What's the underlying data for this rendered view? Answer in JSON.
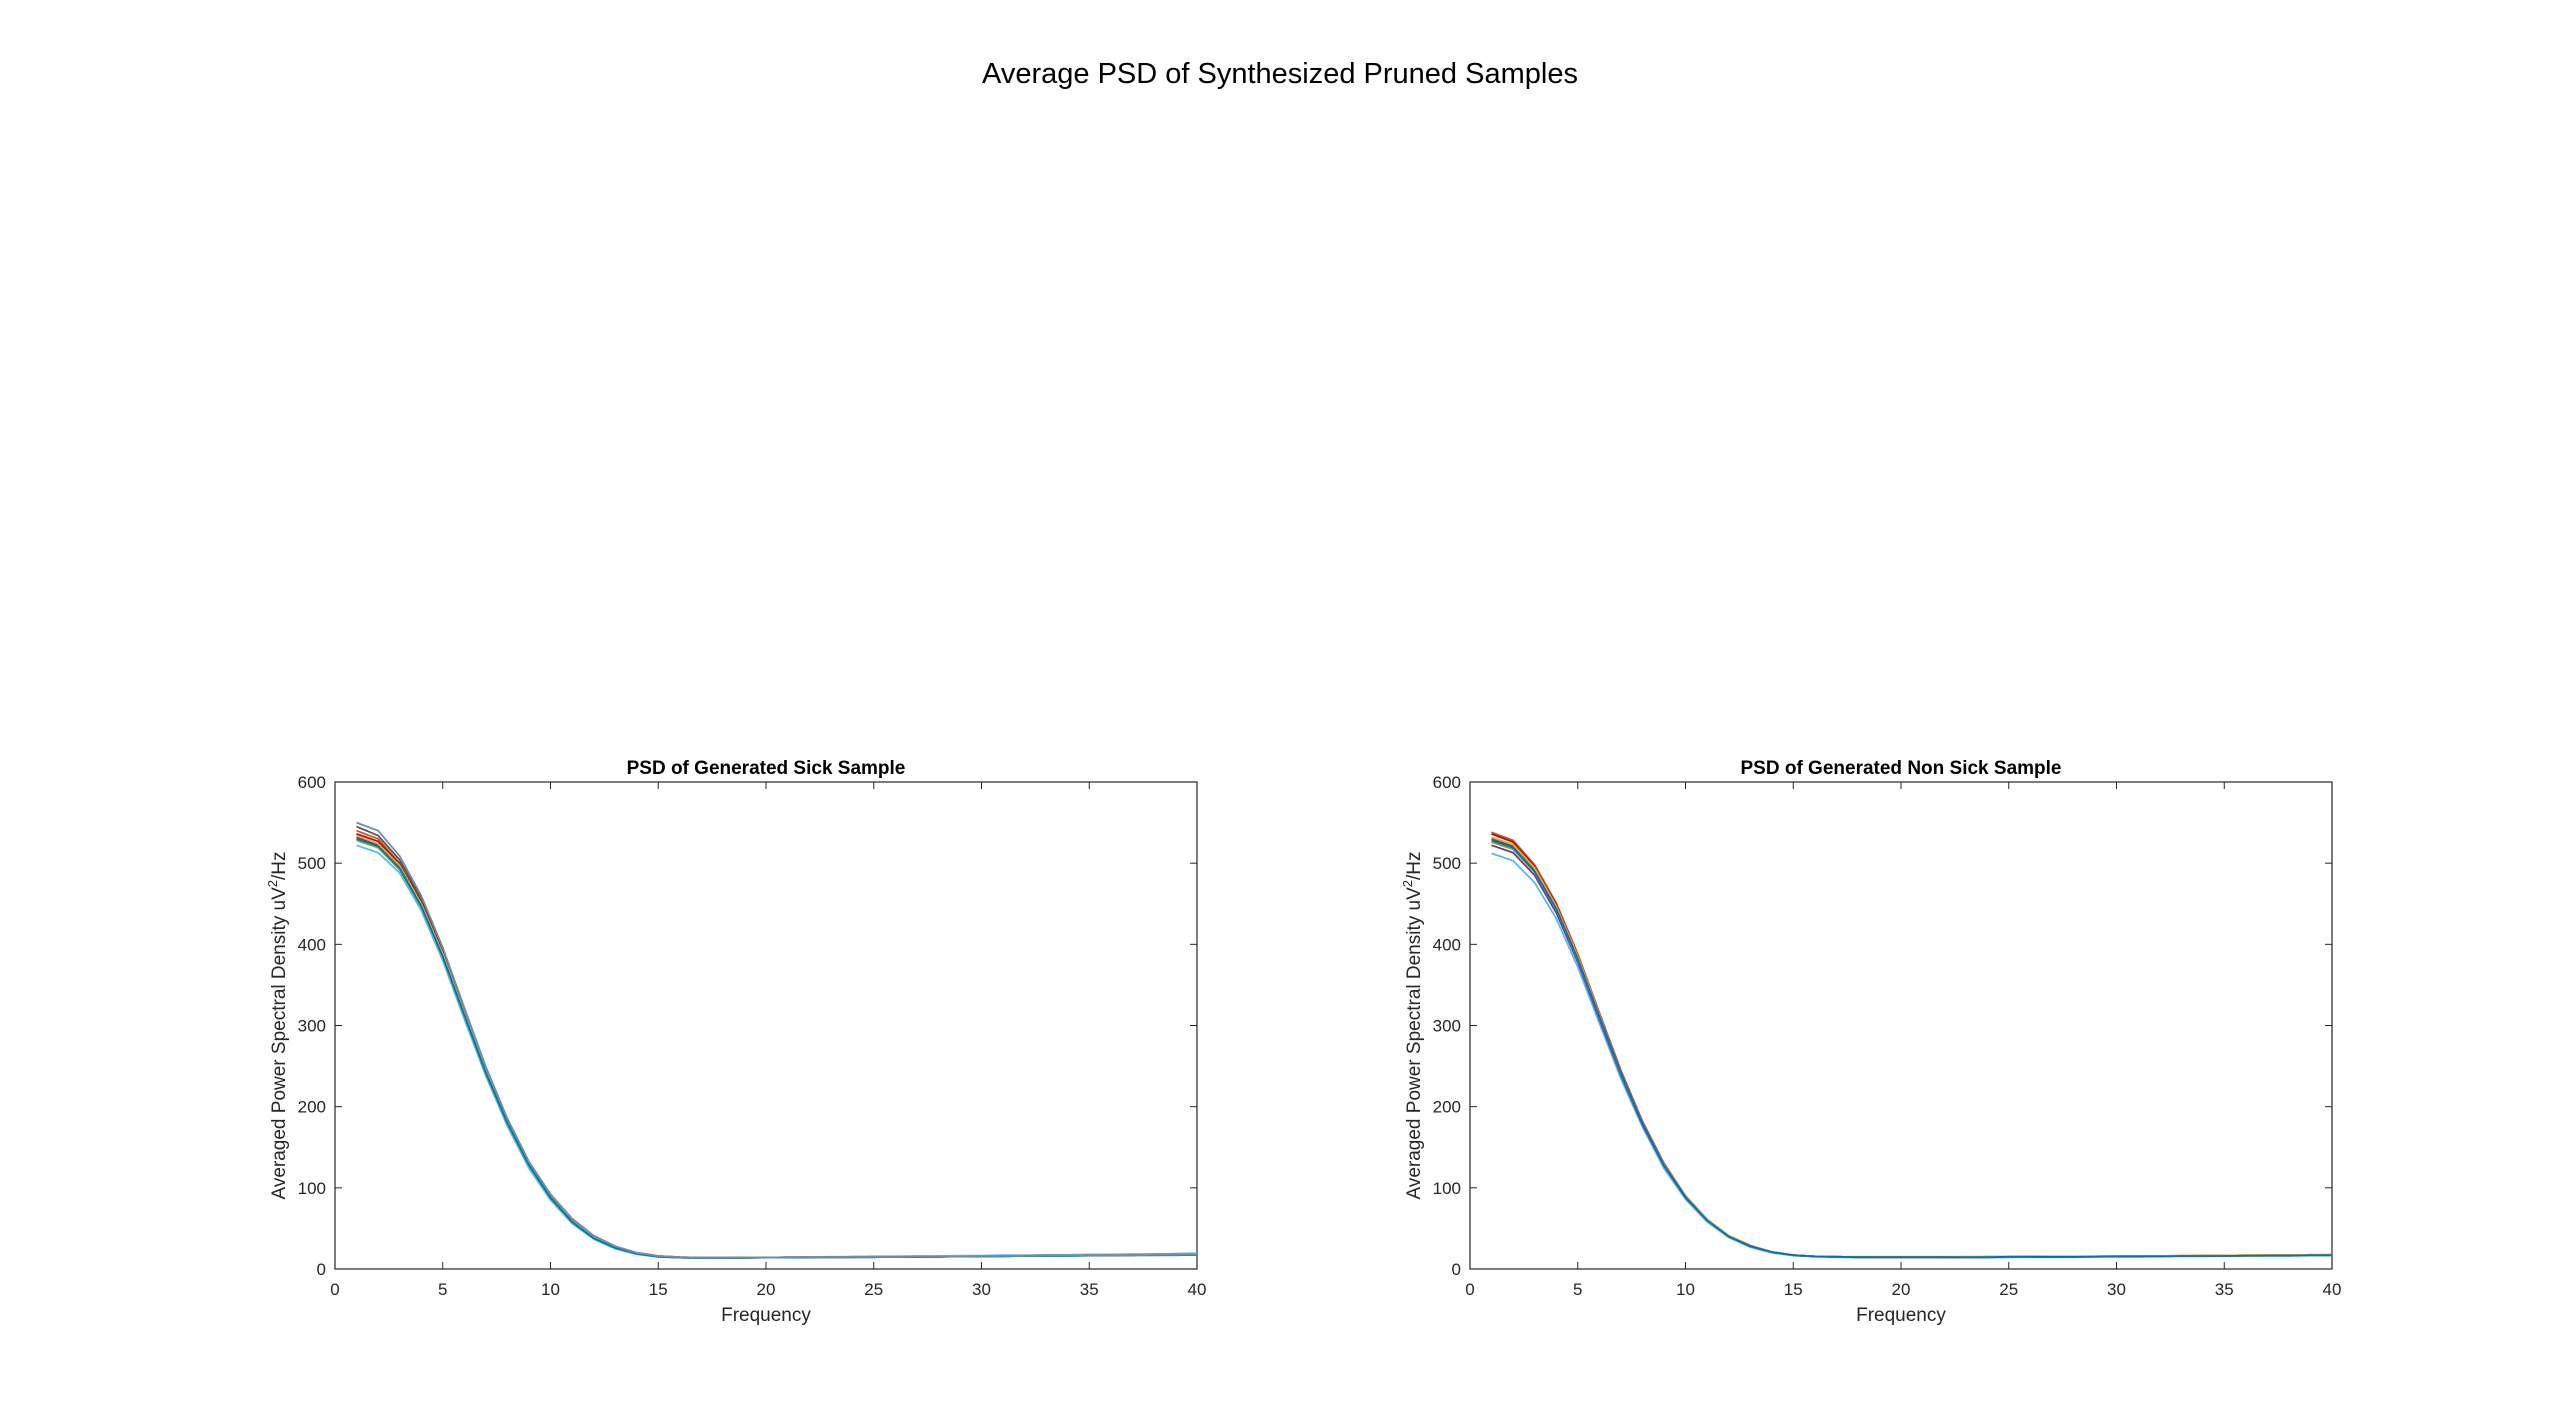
{
  "figure": {
    "title": "Average PSD of Synthesized Pruned Samples"
  },
  "chart_data": [
    {
      "type": "line",
      "title": "PSD of Generated Sick Sample",
      "xlabel": "Frequency",
      "ylabel_main": "Averaged Power Spectral Density uV",
      "ylabel_sup": "2",
      "ylabel_tail": "/Hz",
      "xlim": [
        0,
        40
      ],
      "ylim": [
        0,
        600
      ],
      "xticks": [
        0,
        5,
        10,
        15,
        20,
        25,
        30,
        35,
        40
      ],
      "yticks": [
        0,
        100,
        200,
        300,
        400,
        500,
        600
      ],
      "grid": false,
      "x": [
        1,
        2,
        3,
        4,
        5,
        6,
        7,
        8,
        9,
        10,
        11,
        12,
        13,
        14,
        15,
        16,
        17,
        18,
        19,
        20,
        21,
        22,
        23,
        24,
        25,
        26,
        27,
        28,
        29,
        30,
        31,
        32,
        33,
        34,
        35,
        36,
        37,
        38,
        39,
        40
      ],
      "series": [
        {
          "color": "#4DBEEE",
          "values": [
            522,
            513,
            488,
            442,
            380,
            308,
            238,
            176,
            124,
            85,
            56,
            37,
            25,
            18,
            15,
            14,
            13.5,
            13.5,
            14,
            14,
            14.5,
            14.5,
            15,
            15,
            15.5,
            15.5,
            16,
            16,
            16.5,
            16.5,
            17,
            17,
            17.5,
            17.5,
            18,
            18,
            18.5,
            18.5,
            19,
            19.5
          ]
        },
        {
          "color": "#7E2F8E",
          "values": [
            532,
            522,
            495,
            448,
            386,
            314,
            243,
            181,
            128,
            88,
            59,
            39,
            26,
            19,
            15.5,
            14,
            13.5,
            13.5,
            13.5,
            14,
            14,
            14,
            14.5,
            14.5,
            14.5,
            15,
            15,
            15,
            15.5,
            15.5,
            15.5,
            16,
            16,
            16.5,
            16.5,
            17,
            17,
            17.5,
            17.5,
            18
          ]
        },
        {
          "color": "#D95319",
          "values": [
            540,
            530,
            500,
            453,
            391,
            318,
            246,
            183,
            130,
            90,
            60,
            40,
            27,
            20,
            16,
            14.5,
            14,
            14,
            14,
            14,
            14.5,
            14.5,
            14.5,
            15,
            15,
            15,
            15.5,
            15.5,
            15.5,
            16,
            16,
            16,
            16.5,
            16.5,
            17,
            17,
            17,
            17.5,
            17.5,
            18
          ]
        },
        {
          "color": "#555555",
          "values": [
            545,
            534,
            504,
            457,
            394,
            321,
            249,
            185,
            132,
            92,
            62,
            41,
            28,
            20,
            16,
            14.5,
            14,
            14,
            14,
            14,
            14,
            14.5,
            14.5,
            14.5,
            15,
            15,
            15,
            15.5,
            15.5,
            15.5,
            16,
            16,
            16,
            16.5,
            16.5,
            16.5,
            17,
            17,
            17.5,
            17.5
          ]
        },
        {
          "color": "#A2142F",
          "values": [
            536,
            527,
            499,
            452,
            390,
            317,
            245,
            182,
            129,
            89,
            60,
            39,
            27,
            19,
            15.5,
            14,
            13.5,
            13.5,
            14,
            14,
            14,
            14.5,
            14.5,
            14.5,
            15,
            15,
            15,
            15.5,
            15.5,
            15.5,
            16,
            16,
            16.5,
            16.5,
            16.5,
            17,
            17,
            17.5,
            17.5,
            18
          ]
        },
        {
          "color": "#77AC30",
          "values": [
            528,
            519,
            492,
            446,
            384,
            312,
            241,
            179,
            127,
            87,
            58,
            38,
            26,
            19,
            15.5,
            14,
            13.5,
            13.5,
            13.5,
            14,
            14,
            14,
            14.5,
            14.5,
            14.5,
            15,
            15,
            15,
            15.5,
            15.5,
            15.5,
            16,
            16,
            16,
            16.5,
            16.5,
            17,
            17,
            17,
            17.5
          ]
        },
        {
          "color": "#EDB120",
          "values": [
            534,
            524,
            497,
            450,
            388,
            315,
            244,
            181,
            129,
            89,
            59,
            39,
            26,
            19,
            15.5,
            14,
            13.5,
            13.5,
            14,
            14,
            14,
            14.5,
            14.5,
            15,
            15,
            15,
            15.5,
            15.5,
            16,
            16,
            16,
            16.5,
            16.5,
            16.5,
            17,
            17,
            17.5,
            17.5,
            17.5,
            18
          ]
        },
        {
          "color": "#0072BD",
          "values": [
            530,
            521,
            494,
            447,
            385,
            313,
            242,
            180,
            128,
            88,
            58,
            38,
            26,
            19,
            15,
            14,
            13.5,
            13.5,
            13.5,
            14,
            14,
            14,
            14.5,
            14.5,
            14.5,
            15,
            15,
            15,
            15.5,
            15.5,
            15.5,
            16,
            16,
            16,
            16.5,
            16.5,
            17,
            17,
            17,
            17.5
          ]
        },
        {
          "color": "#6F8FA8",
          "values": [
            550,
            540,
            509,
            460,
            396,
            322,
            249,
            185,
            132,
            92,
            62,
            41,
            28,
            20,
            16,
            14.5,
            14,
            14,
            14,
            14,
            14.5,
            14.5,
            14.5,
            15,
            15,
            15,
            15.5,
            15.5,
            15.5,
            16,
            16,
            16,
            16.5,
            16.5,
            17,
            17,
            17,
            17.5,
            17.5,
            18
          ]
        }
      ]
    },
    {
      "type": "line",
      "title": "PSD of Generated Non Sick Sample",
      "xlabel": "Frequency",
      "ylabel_main": "Averaged Power Spectral Density uV",
      "ylabel_sup": "2",
      "ylabel_tail": "/Hz",
      "xlim": [
        0,
        40
      ],
      "ylim": [
        0,
        600
      ],
      "xticks": [
        0,
        5,
        10,
        15,
        20,
        25,
        30,
        35,
        40
      ],
      "yticks": [
        0,
        100,
        200,
        300,
        400,
        500,
        600
      ],
      "grid": false,
      "x": [
        1,
        2,
        3,
        4,
        5,
        6,
        7,
        8,
        9,
        10,
        11,
        12,
        13,
        14,
        15,
        16,
        17,
        18,
        19,
        20,
        21,
        22,
        23,
        24,
        25,
        26,
        27,
        28,
        29,
        30,
        31,
        32,
        33,
        34,
        35,
        36,
        37,
        38,
        39,
        40
      ],
      "series": [
        {
          "color": "#4DBEEE",
          "values": [
            512,
            503,
            476,
            432,
            372,
            303,
            235,
            175,
            124,
            86,
            58,
            39,
            27,
            20,
            16.5,
            15,
            14.5,
            14,
            14,
            14,
            14,
            14,
            14,
            14,
            14.5,
            14.5,
            14.5,
            14.5,
            15,
            15,
            15,
            15.5,
            15.5,
            15.5,
            16,
            16,
            16,
            16,
            16.5,
            16.5
          ]
        },
        {
          "color": "#7E2F8E",
          "values": [
            522,
            513,
            485,
            439,
            378,
            308,
            239,
            178,
            127,
            88,
            60,
            40,
            28,
            21,
            17,
            15.5,
            15,
            14.5,
            14.5,
            14.5,
            14.5,
            14.5,
            14.5,
            14.5,
            14.5,
            15,
            15,
            15,
            15,
            15.5,
            15.5,
            15.5,
            16,
            16,
            16,
            16.5,
            16.5,
            16.5,
            17,
            17
          ]
        },
        {
          "color": "#D95319",
          "values": [
            538,
            528,
            498,
            451,
            388,
            316,
            245,
            182,
            130,
            90,
            61,
            41,
            29,
            21,
            17,
            15.5,
            15,
            15,
            15,
            15,
            15,
            15,
            15,
            15,
            15,
            15.5,
            15.5,
            15.5,
            15.5,
            16,
            16,
            16,
            16.5,
            16.5,
            16.5,
            17,
            17,
            17,
            17.5,
            17.5
          ]
        },
        {
          "color": "#555555",
          "values": [
            530,
            521,
            492,
            446,
            384,
            313,
            242,
            181,
            129,
            89,
            61,
            41,
            28,
            21,
            17,
            15.5,
            15,
            14.5,
            14.5,
            14.5,
            14.5,
            14.5,
            14.5,
            14.5,
            15,
            15,
            15,
            15,
            15.5,
            15.5,
            15.5,
            15.5,
            16,
            16,
            16,
            16.5,
            16.5,
            16.5,
            17,
            17
          ]
        },
        {
          "color": "#A2142F",
          "values": [
            536,
            526,
            496,
            449,
            386,
            315,
            244,
            182,
            130,
            90,
            61,
            41,
            28,
            21,
            17,
            15.5,
            15,
            14.5,
            14.5,
            14.5,
            14.5,
            14.5,
            14.5,
            15,
            15,
            15,
            15,
            15.5,
            15.5,
            15.5,
            16,
            16,
            16,
            16.5,
            16.5,
            16.5,
            17,
            17,
            17,
            17.5
          ]
        },
        {
          "color": "#77AC30",
          "values": [
            526,
            517,
            489,
            443,
            381,
            311,
            241,
            180,
            128,
            89,
            60,
            40,
            28,
            21,
            17,
            15.5,
            15,
            14.5,
            14.5,
            14.5,
            14.5,
            14.5,
            14.5,
            14.5,
            14.5,
            15,
            15,
            15,
            15,
            15.5,
            15.5,
            15.5,
            16,
            16,
            16,
            16,
            16.5,
            16.5,
            16.5,
            17
          ]
        },
        {
          "color": "#EDB120",
          "values": [
            532,
            523,
            494,
            447,
            385,
            314,
            243,
            181,
            129,
            90,
            61,
            41,
            28,
            21,
            17,
            15.5,
            15,
            14.5,
            14.5,
            14.5,
            14.5,
            14.5,
            15,
            15,
            15,
            15,
            15.5,
            15.5,
            15.5,
            16,
            16,
            16,
            16.5,
            16.5,
            16.5,
            17,
            17,
            17,
            17.5,
            17.5
          ]
        },
        {
          "color": "#0072BD",
          "values": [
            528,
            519,
            490,
            444,
            382,
            312,
            242,
            180,
            128,
            89,
            60,
            40,
            28,
            21,
            17,
            15.5,
            15,
            14.5,
            14.5,
            14.5,
            14.5,
            14.5,
            14.5,
            14.5,
            15,
            15,
            15,
            15,
            15.5,
            15.5,
            15.5,
            15.5,
            16,
            16,
            16,
            16.5,
            16.5,
            16.5,
            17,
            17
          ]
        }
      ]
    }
  ]
}
